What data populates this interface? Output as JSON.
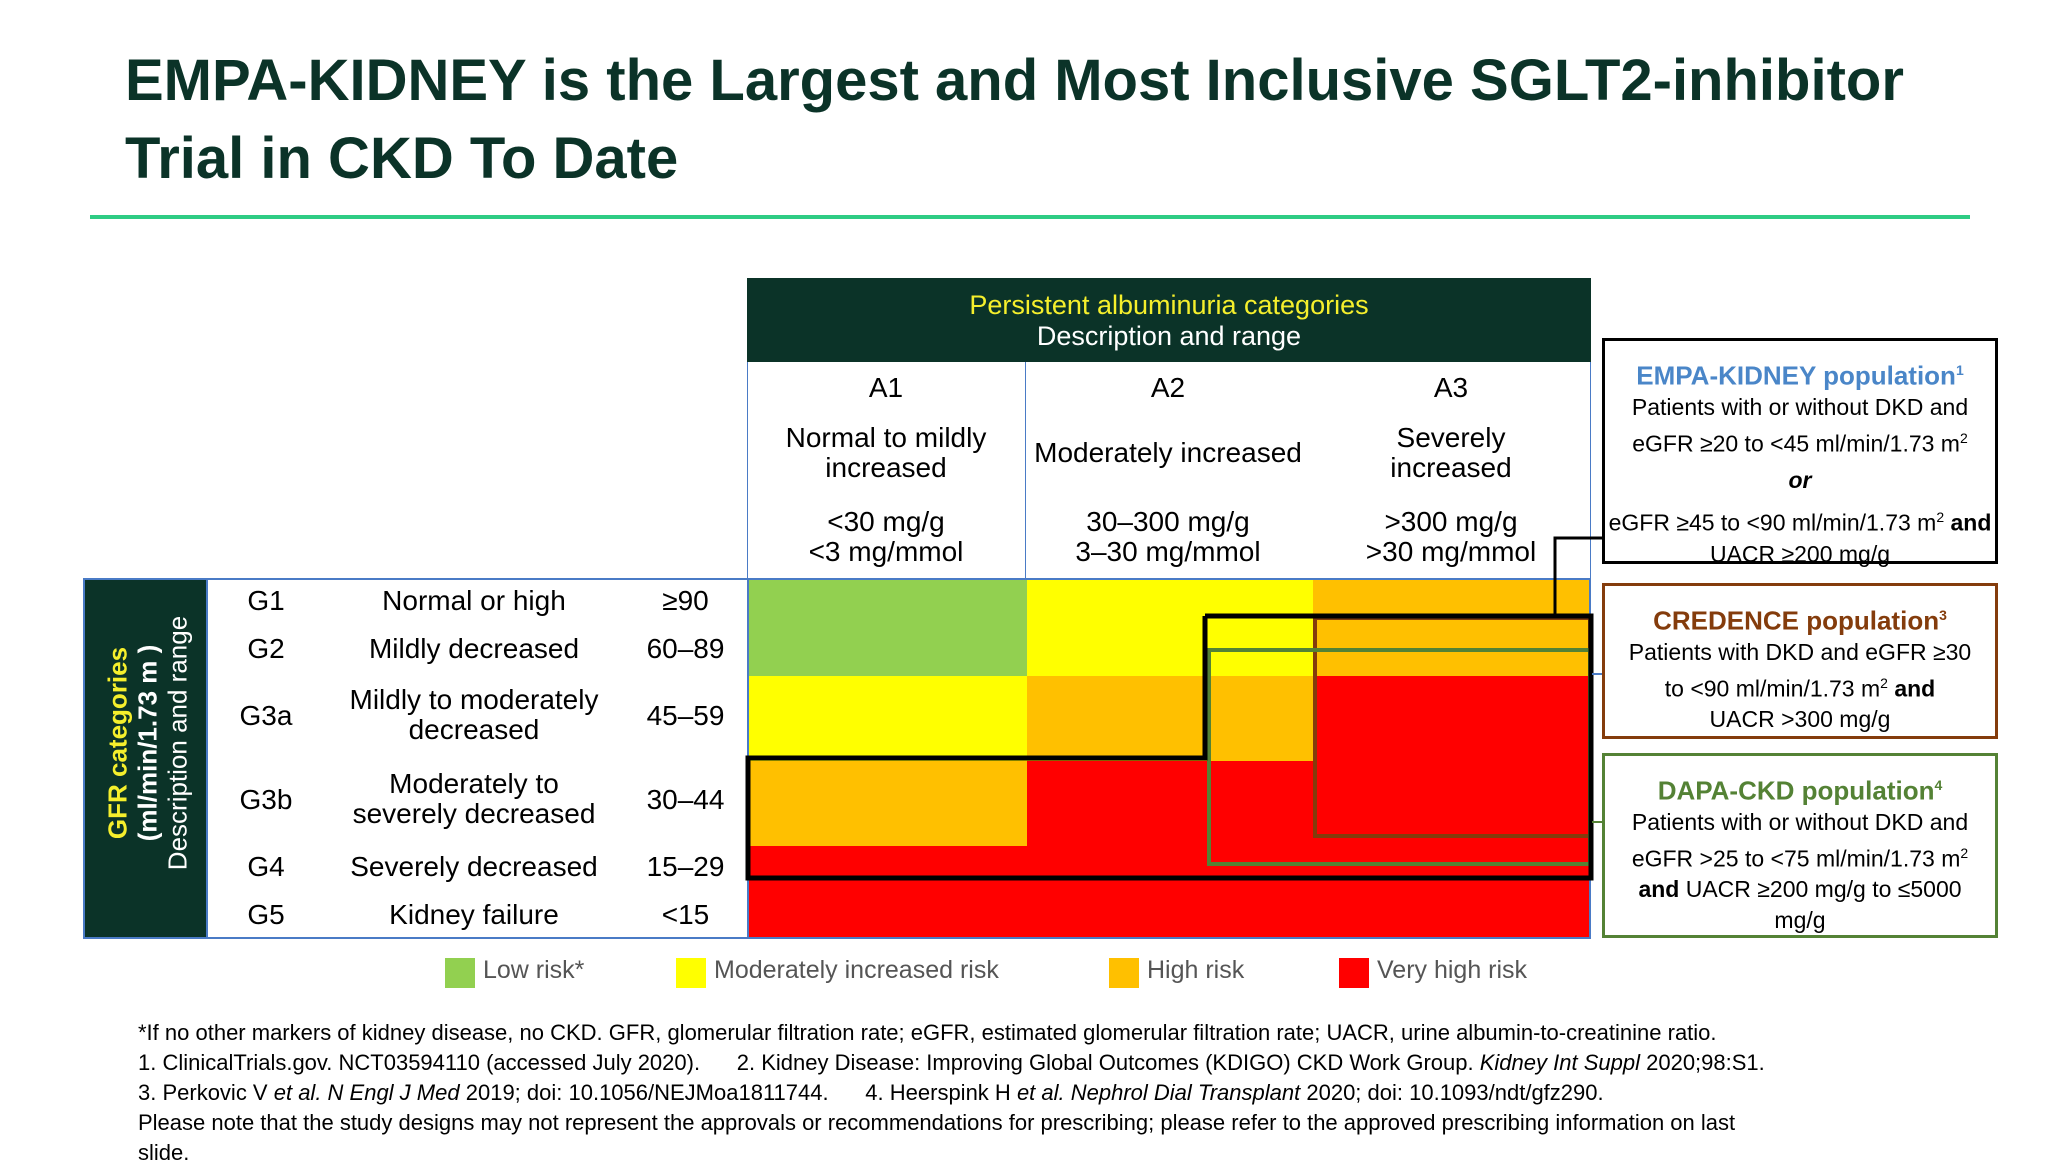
{
  "title": {
    "line1": "EMPA-KIDNEY is the Largest and Most Inclusive SGLT2-inhibitor",
    "line2": "Trial in CKD To Date"
  },
  "albuminuria": {
    "header_line1": "Persistent albuminuria categories",
    "header_line2": "Description and range",
    "columns": [
      {
        "code": "A1",
        "desc1": "Normal to mildly",
        "desc2": "increased",
        "range1": "<30 mg/g",
        "range2": "<3 mg/mmol"
      },
      {
        "code": "A2",
        "desc1": "Moderately increased",
        "desc2": "",
        "range1": "30–300 mg/g",
        "range2": "3–30 mg/mmol"
      },
      {
        "code": "A3",
        "desc1": "Severely",
        "desc2": "increased",
        "range1": ">300 mg/g",
        "range2": ">30 mg/mmol"
      }
    ]
  },
  "gfr": {
    "side_line1": "GFR categories",
    "side_line2": "(ml/min/1.73 m )",
    "side_line3": "Description and range",
    "rows": [
      {
        "code": "G1",
        "desc1": "Normal or high",
        "desc2": "",
        "range": "≥90"
      },
      {
        "code": "G2",
        "desc1": "Mildly decreased",
        "desc2": "",
        "range": "60–89"
      },
      {
        "code": "G3a",
        "desc1": "Mildly to moderately",
        "desc2": "decreased",
        "range": "45–59"
      },
      {
        "code": "G3b",
        "desc1": "Moderately to",
        "desc2": "severely decreased",
        "range": "30–44"
      },
      {
        "code": "G4",
        "desc1": "Severely decreased",
        "desc2": "",
        "range": "15–29"
      },
      {
        "code": "G5",
        "desc1": "Kidney failure",
        "desc2": "",
        "range": "<15"
      }
    ]
  },
  "risk_grid": [
    [
      "low",
      "moderate",
      "high"
    ],
    [
      "low",
      "moderate",
      "high"
    ],
    [
      "moderate",
      "high",
      "very_high"
    ],
    [
      "high",
      "very_high",
      "very_high"
    ],
    [
      "very_high",
      "very_high",
      "very_high"
    ],
    [
      "very_high",
      "very_high",
      "very_high"
    ]
  ],
  "colors": {
    "low": "#92d050",
    "moderate": "#ffff00",
    "high": "#ffc000",
    "very_high": "#ff0000",
    "header_bg": "#0b3328",
    "empa": "#000000",
    "credence": "#843c0c",
    "dapa": "#548235",
    "empa_title": "#4a86c8"
  },
  "legend": [
    {
      "label": "Low risk*",
      "key": "low"
    },
    {
      "label": "Moderately increased risk",
      "key": "moderate"
    },
    {
      "label": "High risk",
      "key": "high"
    },
    {
      "label": "Very high risk",
      "key": "very_high"
    }
  ],
  "populations": {
    "empa": {
      "title": "EMPA-KIDNEY population",
      "sup": "1",
      "line1": "Patients with or without DKD and",
      "line2": "eGFR ≥20 to <45 ml/min/1.73 m",
      "line2_sup": "2",
      "or": "or",
      "line3": "eGFR ≥45 to <90 ml/min/1.73 m",
      "line3_sup": "2",
      "line3_and": "and",
      "line4": "UACR ≥200 mg/g"
    },
    "credence": {
      "title": "CREDENCE population",
      "sup": "3",
      "line1": "Patients with DKD and eGFR ≥30",
      "line2": "to <90 ml/min/1.73 m",
      "line2_sup": "2",
      "line2_and": "and",
      "line3": "UACR >300 mg/g"
    },
    "dapa": {
      "title": "DAPA-CKD population",
      "sup": "4",
      "line1": "Patients with or without DKD and",
      "line2": "eGFR >25 to <75 ml/min/1.73 m",
      "line2_sup": "2",
      "line3_and": "and",
      "line3": "UACR ≥200 mg/g to ≤5000",
      "line4": "mg/g"
    }
  },
  "footnotes": {
    "line1": "*If no other markers of kidney disease, no CKD. GFR, glomerular filtration rate; eGFR, estimated glomerular filtration rate; UACR, urine albumin-to-creatinine ratio.",
    "ref1": "1. ClinicalTrials.gov. NCT03594110 (accessed July 2020).",
    "ref2_a": "2. Kidney Disease: Improving Global Outcomes (KDIGO) CKD Work Group.",
    "ref2_b": "Kidney Int Suppl",
    "ref2_c": "2020;98:S1.",
    "ref3_a": "3. Perkovic V",
    "ref3_b": "et al. N Engl J Med",
    "ref3_c": "2019; doi: 10.1056/NEJMoa1811744.",
    "ref4_a": "4. Heerspink H",
    "ref4_b": "et al. Nephrol Dial Transplant",
    "ref4_c": "2020; doi: 10.1093/ndt/gfz290.",
    "line4": "Please note that the study designs may not represent the approvals or recommendations for prescribing; please refer to the approved prescribing information on last",
    "line5": "slide."
  }
}
